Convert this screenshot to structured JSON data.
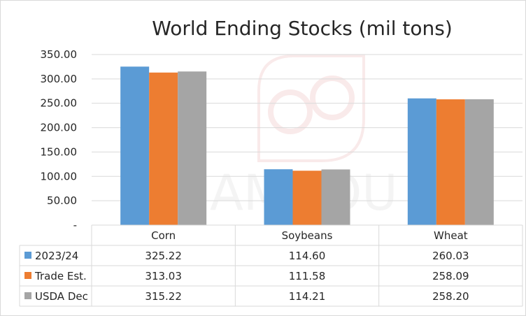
{
  "chart_data": {
    "type": "bar",
    "title": "World Ending Stocks (mil tons)",
    "categories": [
      "Corn",
      "Soybeans",
      "Wheat"
    ],
    "series": [
      {
        "name": "2023/24",
        "values": [
          325.22,
          114.6,
          260.03
        ],
        "display": [
          "325.22",
          "114.60",
          "260.03"
        ],
        "color": "#5b9bd5"
      },
      {
        "name": "Trade Est.",
        "values": [
          313.03,
          111.58,
          258.09
        ],
        "display": [
          "313.03",
          "111.58",
          "258.09"
        ],
        "color": "#ed7d31"
      },
      {
        "name": "USDA Dec",
        "values": [
          315.22,
          114.21,
          258.2
        ],
        "display": [
          "315.22",
          "114.21",
          "258.20"
        ],
        "color": "#a5a5a5"
      }
    ],
    "ylim": [
      0,
      350
    ],
    "yticks": [
      0,
      50,
      100,
      150,
      200,
      250,
      300,
      350
    ],
    "ytick_labels": [
      "-",
      "50.00",
      "100.00",
      "150.00",
      "200.00",
      "250.00",
      "300.00",
      "350.00"
    ],
    "grid": true,
    "legend": "data-table"
  },
  "watermark": {
    "description": "faint qd logo watermark"
  }
}
